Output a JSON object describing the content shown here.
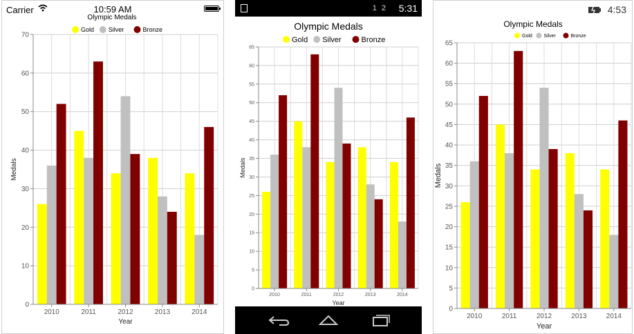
{
  "panels": {
    "ios": {
      "status": {
        "carrier": "Carrier",
        "time": "10:59 AM"
      },
      "chart": {
        "title": "Olympic Medals",
        "xlabel": "Year",
        "ylabel": "Medals"
      }
    },
    "android": {
      "status": {
        "icons": "1  2",
        "time": "5:31"
      },
      "chart": {
        "title": "Olympic Medals",
        "xlabel": "Year",
        "ylabel": "Medals"
      }
    },
    "windows": {
      "status": {
        "time": "4:53"
      },
      "chart": {
        "title": "Olympic Medals",
        "xlabel": "Year",
        "ylabel": "Medals"
      }
    }
  },
  "colors": {
    "gold": "#FFFF00",
    "silver": "#C0C0C0",
    "bronze": "#800000"
  },
  "chart_data": [
    {
      "type": "bar",
      "title": "Olympic Medals",
      "xlabel": "Year",
      "ylabel": "Medals",
      "categories": [
        "2010",
        "2011",
        "2012",
        "2013",
        "2014"
      ],
      "series": [
        {
          "name": "Gold",
          "values": [
            26,
            45,
            34,
            38,
            34
          ]
        },
        {
          "name": "Silver",
          "values": [
            36,
            38,
            54,
            28,
            18
          ]
        },
        {
          "name": "Bronze",
          "values": [
            52,
            63,
            39,
            24,
            46
          ]
        }
      ],
      "ylim": [
        0,
        70
      ],
      "yticks": [
        0,
        10,
        20,
        30,
        40,
        50,
        60,
        70
      ],
      "grid": true,
      "legend": "top-center"
    },
    {
      "type": "bar",
      "title": "Olympic Medals",
      "xlabel": "Year",
      "ylabel": "Medals",
      "categories": [
        "2010",
        "2011",
        "2012",
        "2013",
        "2014"
      ],
      "series": [
        {
          "name": "Gold",
          "values": [
            26,
            45,
            34,
            38,
            34
          ]
        },
        {
          "name": "Silver",
          "values": [
            36,
            38,
            54,
            28,
            18
          ]
        },
        {
          "name": "Bronze",
          "values": [
            52,
            63,
            39,
            24,
            46
          ]
        }
      ],
      "ylim": [
        0,
        65
      ],
      "yticks": [
        0,
        5,
        10,
        15,
        20,
        25,
        30,
        35,
        40,
        45,
        50,
        55,
        60,
        65
      ],
      "grid": true,
      "legend": "top-center"
    },
    {
      "type": "bar",
      "title": "Olympic Medals",
      "xlabel": "Year",
      "ylabel": "Medals",
      "categories": [
        "2010",
        "2011",
        "2012",
        "2013",
        "2014"
      ],
      "series": [
        {
          "name": "Gold",
          "values": [
            26,
            45,
            34,
            38,
            34
          ]
        },
        {
          "name": "Silver",
          "values": [
            36,
            38,
            54,
            28,
            18
          ]
        },
        {
          "name": "Bronze",
          "values": [
            52,
            63,
            39,
            24,
            46
          ]
        }
      ],
      "ylim": [
        0,
        65
      ],
      "yticks": [
        0,
        5,
        10,
        15,
        20,
        25,
        30,
        35,
        40,
        45,
        50,
        55,
        60,
        65
      ],
      "grid": true,
      "legend": "top-center"
    }
  ]
}
